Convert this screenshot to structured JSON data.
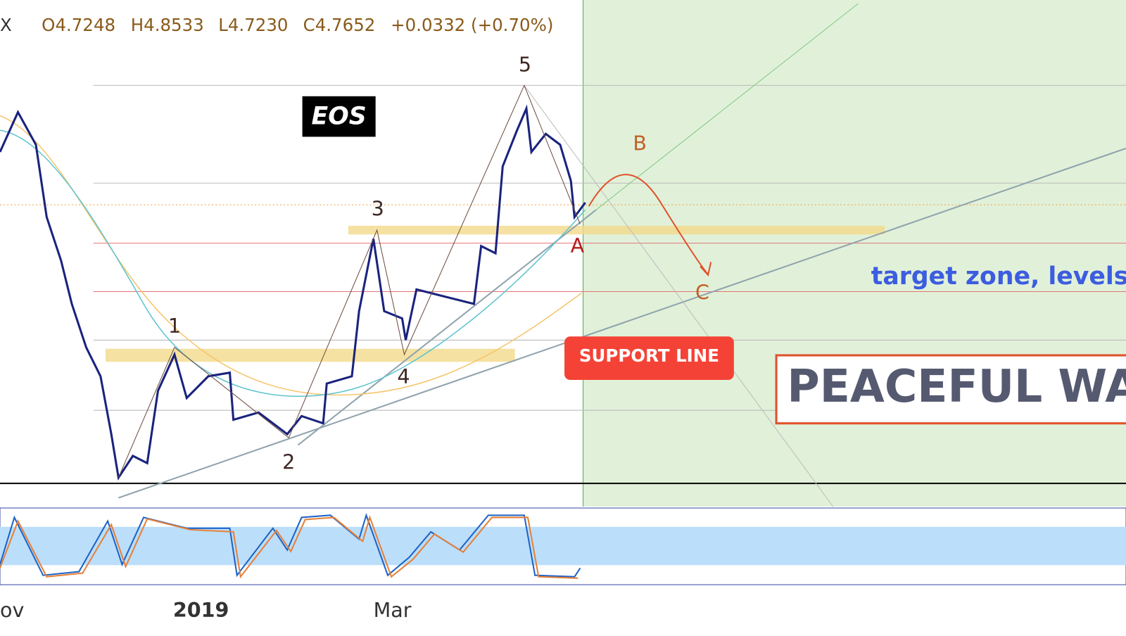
{
  "header": {
    "symbol": "X",
    "open": "O4.7248",
    "high": "H4.8533",
    "low": "L4.7230",
    "close": "C4.7652",
    "change": "+0.0332 (+0.70%)"
  },
  "labels": {
    "title": "EOS",
    "waves": [
      "1",
      "2",
      "3",
      "4",
      "5"
    ],
    "corrective": [
      "A",
      "B",
      "C"
    ],
    "support": "SUPPORT LINE",
    "target": "target zone, levels",
    "banner": "PEACEFUL WA"
  },
  "x_axis": [
    "ov",
    "2019",
    "Mar"
  ]
}
